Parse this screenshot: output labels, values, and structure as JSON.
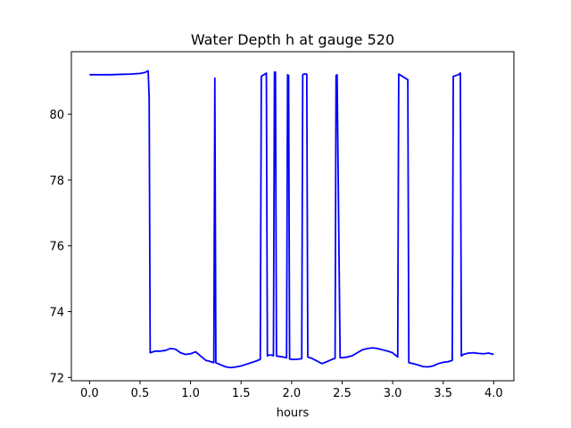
{
  "chart_data": {
    "type": "line",
    "title": "Water Depth h at gauge 520",
    "xlabel": "hours",
    "ylabel": "",
    "xlim": [
      -0.18,
      4.2
    ],
    "ylim": [
      71.9,
      81.9
    ],
    "xticks": [
      0.0,
      0.5,
      1.0,
      1.5,
      2.0,
      2.5,
      3.0,
      3.5,
      4.0
    ],
    "xtick_labels": [
      "0.0",
      "0.5",
      "1.0",
      "1.5",
      "2.0",
      "2.5",
      "3.0",
      "3.5",
      "4.0"
    ],
    "yticks": [
      72,
      74,
      76,
      78,
      80
    ],
    "ytick_labels": [
      "72",
      "74",
      "76",
      "78",
      "80"
    ],
    "grid": false,
    "series": [
      {
        "color": "#0000ff",
        "x": [
          0.0,
          0.1,
          0.2,
          0.3,
          0.4,
          0.5,
          0.55,
          0.58,
          0.59,
          0.6,
          0.65,
          0.7,
          0.75,
          0.8,
          0.85,
          0.9,
          0.95,
          1.0,
          1.05,
          1.1,
          1.15,
          1.2,
          1.23,
          1.24,
          1.25,
          1.3,
          1.35,
          1.4,
          1.45,
          1.5,
          1.55,
          1.6,
          1.65,
          1.69,
          1.7,
          1.75,
          1.76,
          1.77,
          1.8,
          1.82,
          1.83,
          1.84,
          1.85,
          1.9,
          1.95,
          1.96,
          1.97,
          1.98,
          2.0,
          2.05,
          2.1,
          2.11,
          2.12,
          2.15,
          2.16,
          2.2,
          2.25,
          2.3,
          2.35,
          2.4,
          2.43,
          2.44,
          2.45,
          2.48,
          2.5,
          2.55,
          2.6,
          2.65,
          2.7,
          2.75,
          2.8,
          2.85,
          2.9,
          2.95,
          3.0,
          3.05,
          3.06,
          3.07,
          3.15,
          3.16,
          3.2,
          3.25,
          3.3,
          3.35,
          3.4,
          3.45,
          3.5,
          3.55,
          3.59,
          3.6,
          3.65,
          3.67,
          3.68,
          3.7,
          3.75,
          3.8,
          3.85,
          3.9,
          3.95,
          4.0
        ],
        "y": [
          81.2,
          81.2,
          81.2,
          81.21,
          81.22,
          81.24,
          81.27,
          81.32,
          80.5,
          72.75,
          72.8,
          72.8,
          72.82,
          72.88,
          72.86,
          72.75,
          72.7,
          72.72,
          72.78,
          72.65,
          72.52,
          72.48,
          72.45,
          81.1,
          72.45,
          72.38,
          72.32,
          72.3,
          72.32,
          72.35,
          72.4,
          72.45,
          72.5,
          72.55,
          81.15,
          81.25,
          72.65,
          72.68,
          72.68,
          72.66,
          81.28,
          81.28,
          72.65,
          72.63,
          72.6,
          81.2,
          81.18,
          72.56,
          72.55,
          72.55,
          72.57,
          81.2,
          81.22,
          81.22,
          72.62,
          72.58,
          72.5,
          72.42,
          72.48,
          72.55,
          72.58,
          81.18,
          81.2,
          72.6,
          72.6,
          72.62,
          72.66,
          72.75,
          72.84,
          72.88,
          72.9,
          72.88,
          72.84,
          72.8,
          72.75,
          72.62,
          81.22,
          81.2,
          81.05,
          72.45,
          72.42,
          72.38,
          72.33,
          72.32,
          72.35,
          72.42,
          72.46,
          72.48,
          72.52,
          81.15,
          81.2,
          81.25,
          72.65,
          72.7,
          72.74,
          72.75,
          72.73,
          72.72,
          72.74,
          72.7
        ]
      }
    ]
  }
}
